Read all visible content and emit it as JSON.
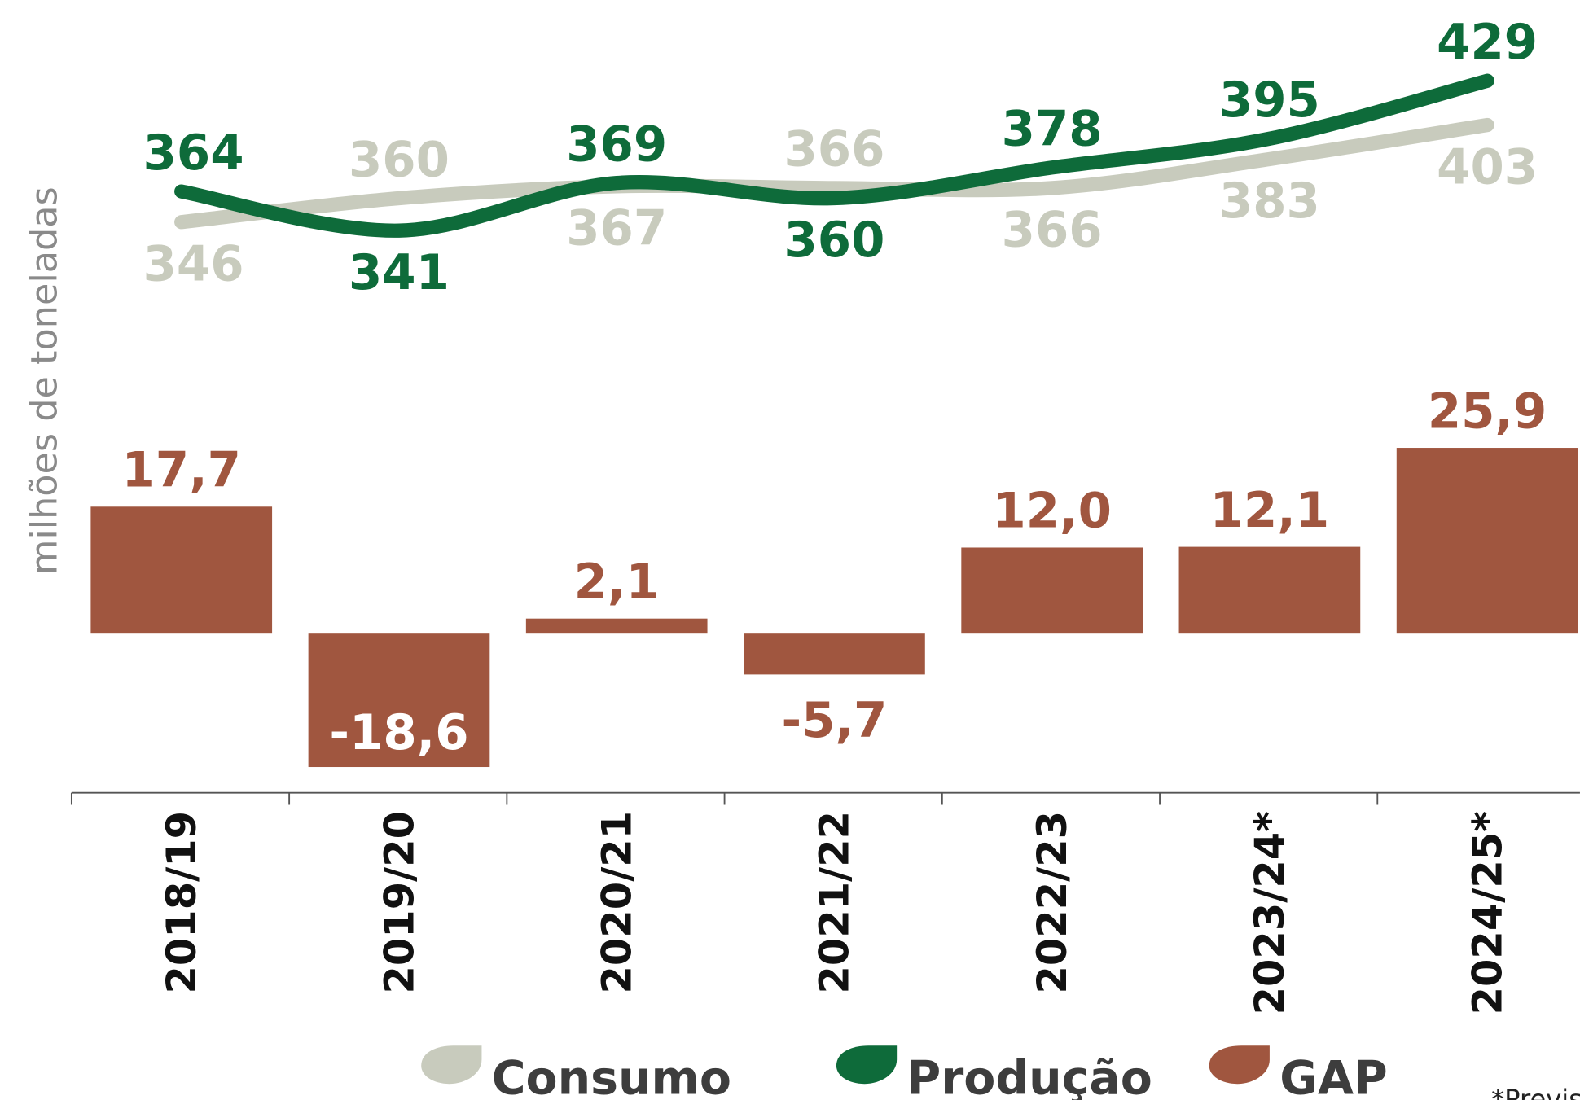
{
  "chart_data": {
    "type": "bar-line",
    "y_axis_label": "milhões de toneladas",
    "categories": [
      "2018/19",
      "2019/20",
      "2020/21",
      "2021/22",
      "2022/23",
      "2023/24*",
      "2024/25*"
    ],
    "series": [
      {
        "name": "Consumo",
        "type": "line",
        "color": "#c8cbbd",
        "values": [
          346,
          360,
          367,
          366,
          366,
          383,
          403
        ]
      },
      {
        "name": "Produção",
        "type": "line",
        "color": "#0e6b3a",
        "values": [
          364,
          341,
          369,
          360,
          378,
          395,
          429
        ]
      },
      {
        "name": "GAP",
        "type": "bar",
        "color": "#a0563f",
        "values": [
          17.7,
          -18.6,
          2.1,
          -5.7,
          12.0,
          12.1,
          25.9
        ],
        "value_labels": [
          "17,7",
          "-18,6",
          "2,1",
          "-5,7",
          "12,0",
          "12,1",
          "25,9"
        ]
      }
    ],
    "footnote": "*Previsão"
  }
}
